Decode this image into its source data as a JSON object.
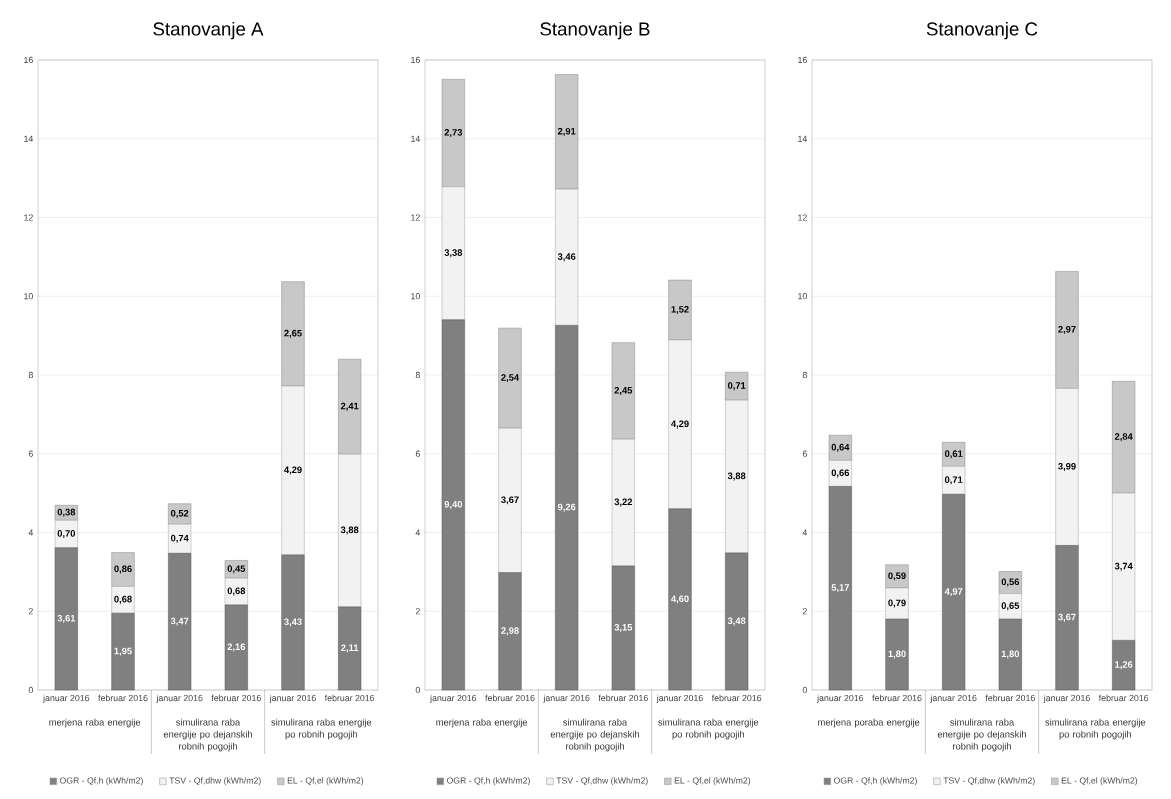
{
  "chart_data": [
    {
      "type": "bar",
      "title": "Stanovanje A",
      "stacked": true,
      "ylim": [
        0,
        16
      ],
      "yticks": [
        0,
        2,
        4,
        6,
        8,
        10,
        12,
        14,
        16
      ],
      "grid": "y",
      "legend": "bottom",
      "categories": [
        "januar 2016",
        "februar 2016",
        "januar 2016",
        "februar 2016",
        "januar 2016",
        "februar 2016"
      ],
      "annotations": [
        "merjena raba energije",
        "simulirana raba energije po dejanskih robnih pogojih",
        "simulirana raba energije po robnih pogojih"
      ],
      "series": [
        {
          "name": "OGR - Qf,h (kWh/m2)",
          "color": "#808080",
          "values": [
            3.61,
            1.95,
            3.47,
            2.16,
            3.43,
            2.11
          ],
          "value_labels": [
            "3,61",
            "1,95",
            "3,47",
            "2,16",
            "3,43",
            "2,11"
          ]
        },
        {
          "name": "TSV - Qf,dhw (kWh/m2)",
          "color": "#f2f2f2",
          "values": [
            0.7,
            0.68,
            0.74,
            0.68,
            4.29,
            3.88
          ],
          "value_labels": [
            "0,70",
            "0,68",
            "0,74",
            "0,68",
            "4,29",
            "3,88"
          ]
        },
        {
          "name": "EL - Qf,el (kWh/m2)",
          "color": "#c8c8c8",
          "values": [
            0.38,
            0.86,
            0.52,
            0.45,
            2.65,
            2.41
          ],
          "value_labels": [
            "0,38",
            "0,86",
            "0,52",
            "0,45",
            "2,65",
            "2,41"
          ]
        }
      ]
    },
    {
      "type": "bar",
      "title": "Stanovanje B",
      "stacked": true,
      "ylim": [
        0,
        16
      ],
      "yticks": [
        0,
        2,
        4,
        6,
        8,
        10,
        12,
        14,
        16
      ],
      "grid": "y",
      "legend": "bottom",
      "categories": [
        "januar 2016",
        "februar 2016",
        "januar 2016",
        "februar 2016",
        "januar 2016",
        "februar 2016"
      ],
      "annotations": [
        "merjena raba energije",
        "simulirana raba energije po dejanskih robnih pogojih",
        "simulirana raba energije po robnih pogojih"
      ],
      "series": [
        {
          "name": "OGR - Qf,h (kWh/m2)",
          "color": "#808080",
          "values": [
            9.4,
            2.98,
            9.26,
            3.15,
            4.6,
            3.48
          ],
          "value_labels": [
            "9,40",
            "2,98",
            "9,26",
            "3,15",
            "4,60",
            "3,48"
          ]
        },
        {
          "name": "TSV - Qf,dhw (kWh/m2)",
          "color": "#f2f2f2",
          "values": [
            3.38,
            3.67,
            3.46,
            3.22,
            4.29,
            3.88
          ],
          "value_labels": [
            "3,38",
            "3,67",
            "3,46",
            "3,22",
            "4,29",
            "3,88"
          ]
        },
        {
          "name": "EL - Qf,el (kWh/m2)",
          "color": "#c8c8c8",
          "values": [
            2.73,
            2.54,
            2.91,
            2.45,
            1.52,
            0.71
          ],
          "value_labels": [
            "2,73",
            "2,54",
            "2,91",
            "2,45",
            "1,52",
            "0,71"
          ]
        }
      ]
    },
    {
      "type": "bar",
      "title": "Stanovanje C",
      "stacked": true,
      "ylim": [
        0,
        16
      ],
      "yticks": [
        0,
        2,
        4,
        6,
        8,
        10,
        12,
        14,
        16
      ],
      "grid": "y",
      "legend": "bottom",
      "categories": [
        "januar 2016",
        "februar 2016",
        "januar 2016",
        "februar 2016",
        "januar 2016",
        "februar 2016"
      ],
      "annotations": [
        "merjena poraba energije",
        "simulirana raba energije po dejanskih robnih pogojih",
        "simulirana raba energije po robnih pogojih"
      ],
      "series": [
        {
          "name": "OGR - Qf,h (kWh/m2)",
          "color": "#808080",
          "values": [
            5.17,
            1.8,
            4.97,
            1.8,
            3.67,
            1.26
          ],
          "value_labels": [
            "5,17",
            "1,80",
            "4,97",
            "1,80",
            "3,67",
            "1,26"
          ]
        },
        {
          "name": "TSV - Qf,dhw (kWh/m2)",
          "color": "#f2f2f2",
          "values": [
            0.66,
            0.79,
            0.71,
            0.65,
            3.99,
            3.74
          ],
          "value_labels": [
            "0,66",
            "0,79",
            "0,71",
            "0,65",
            "3,99",
            "3,74"
          ]
        },
        {
          "name": "EL - Qf,el (kWh/m2)",
          "color": "#c8c8c8",
          "values": [
            0.64,
            0.59,
            0.61,
            0.56,
            2.97,
            2.84
          ],
          "value_labels": [
            "0,64",
            "0,59",
            "0,61",
            "0,56",
            "2,97",
            "2,84"
          ]
        }
      ]
    }
  ]
}
